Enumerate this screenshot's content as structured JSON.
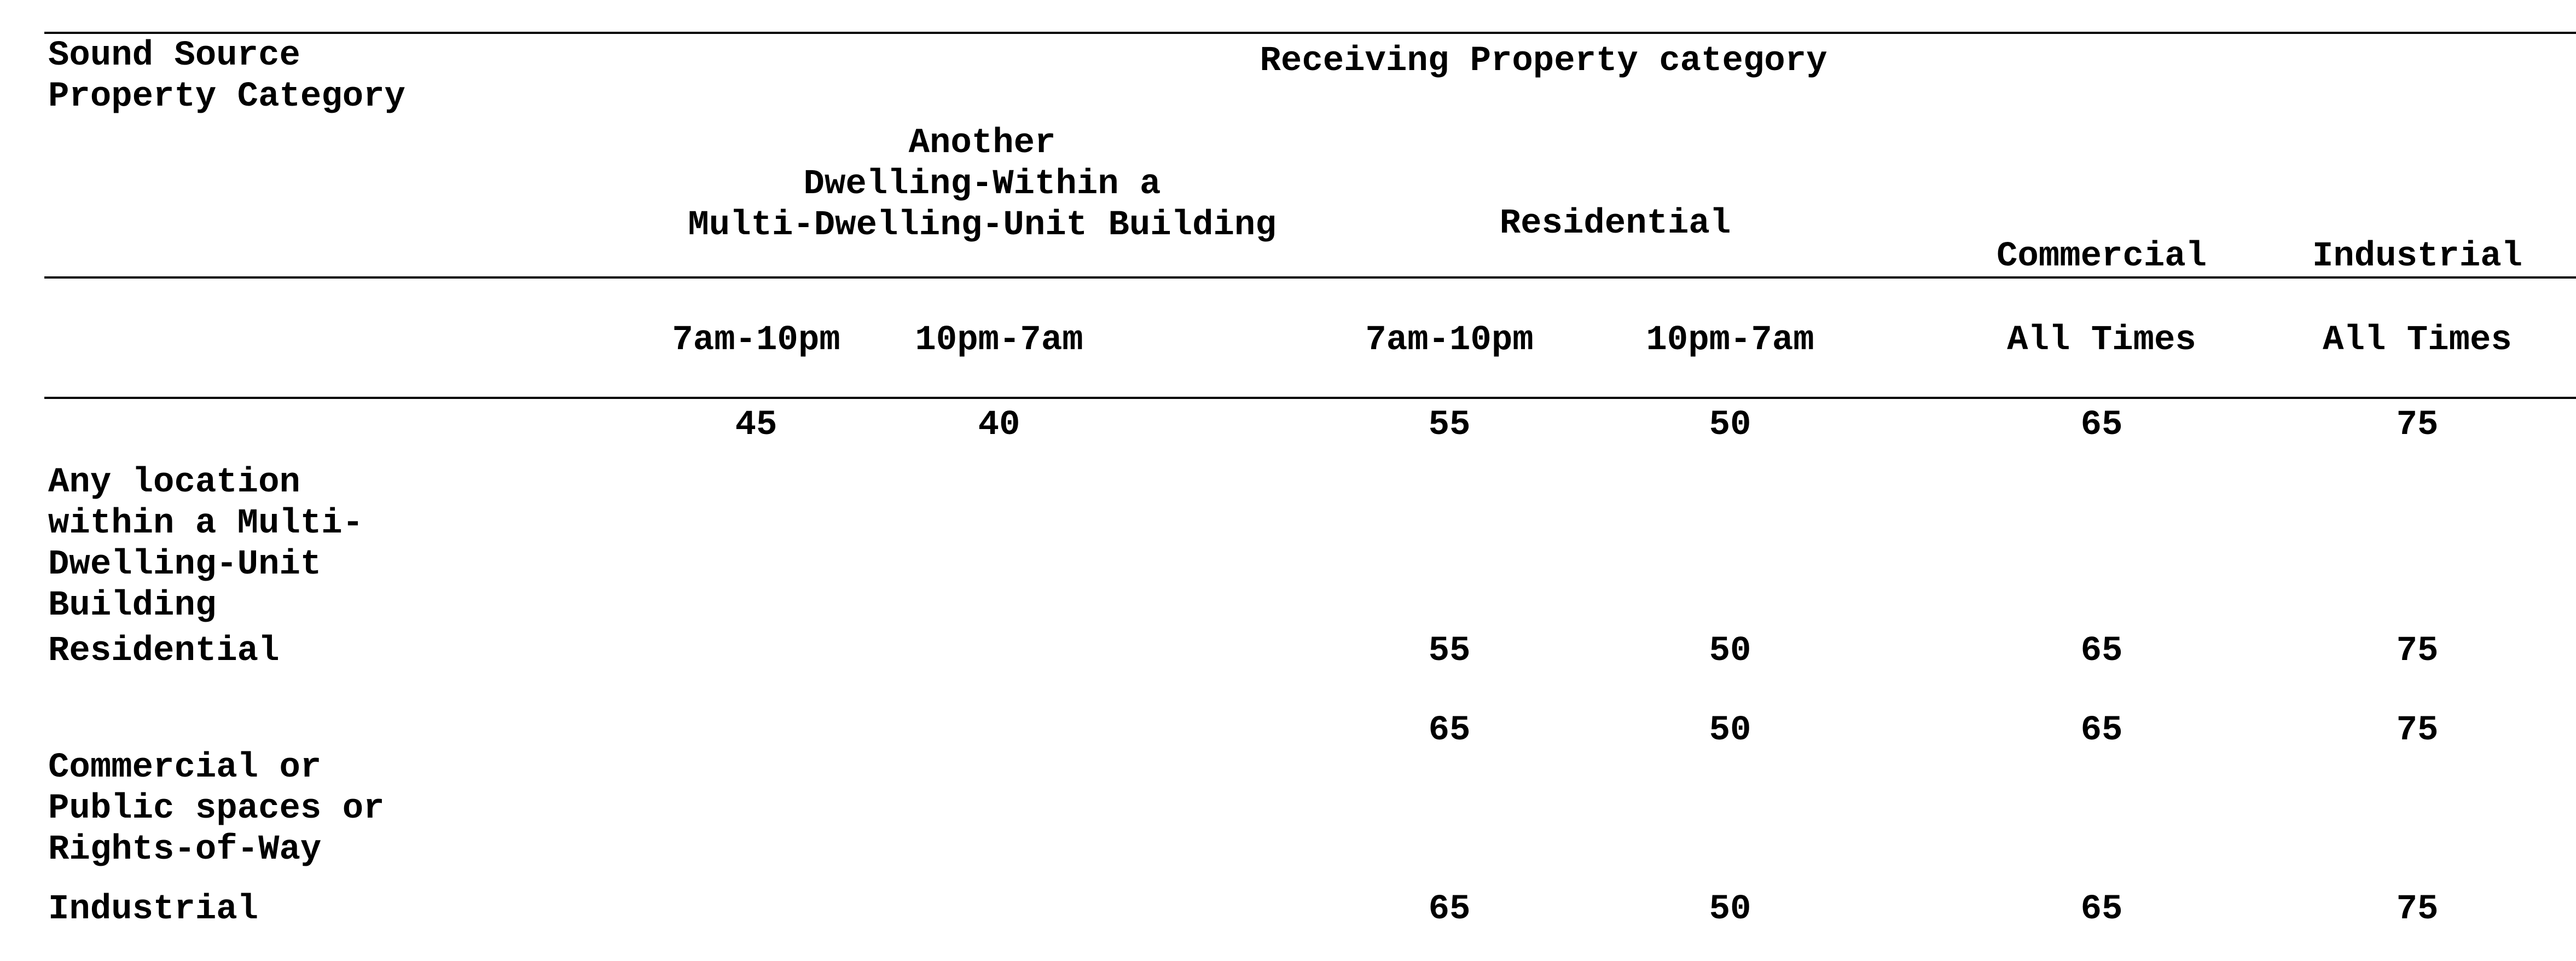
{
  "header": {
    "source_category": "Sound Source\nProperty Category",
    "receiving_category": "Receiving Property category"
  },
  "groups": {
    "multi_dwelling": "Another\nDwelling-Within a\nMulti-Dwelling-Unit Building",
    "residential": "Residential",
    "commercial": "Commercial",
    "industrial": "Industrial"
  },
  "times": {
    "md_day": "7am-10pm",
    "md_night": "10pm-7am",
    "res_day": "7am-10pm",
    "res_night": "10pm-7am",
    "com_all": "All Times",
    "ind_all": "All Times"
  },
  "rows": [
    {
      "label": "Any location\nwithin a Multi-\nDwelling-Unit\nBuilding",
      "md_day": "45",
      "md_night": "40",
      "res_day": "55",
      "res_night": "50",
      "com": "65",
      "ind": "75"
    },
    {
      "label": "Residential",
      "md_day": "",
      "md_night": "",
      "res_day": "55",
      "res_night": "50",
      "com": "65",
      "ind": "75"
    },
    {
      "label": "Commercial or\nPublic spaces or\nRights-of-Way",
      "md_day": "",
      "md_night": "",
      "res_day": "65",
      "res_night": "50",
      "com": "65",
      "ind": "75"
    },
    {
      "label": "Industrial",
      "md_day": "",
      "md_night": "",
      "res_day": "65",
      "res_night": "50",
      "com": "65",
      "ind": "75"
    }
  ]
}
